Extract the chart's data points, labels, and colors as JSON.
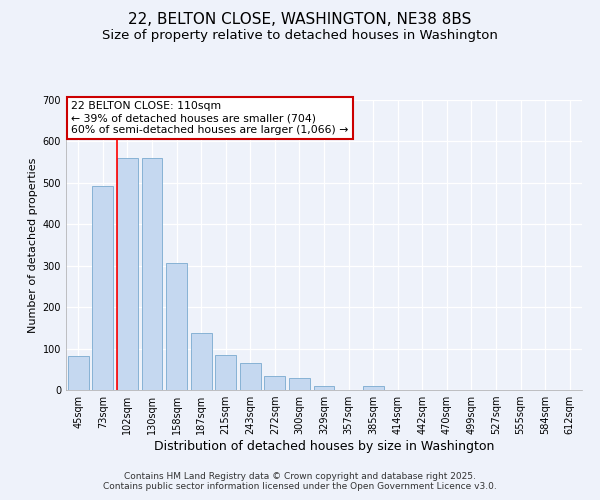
{
  "title": "22, BELTON CLOSE, WASHINGTON, NE38 8BS",
  "subtitle": "Size of property relative to detached houses in Washington",
  "xlabel": "Distribution of detached houses by size in Washington",
  "ylabel": "Number of detached properties",
  "categories": [
    "45sqm",
    "73sqm",
    "102sqm",
    "130sqm",
    "158sqm",
    "187sqm",
    "215sqm",
    "243sqm",
    "272sqm",
    "300sqm",
    "329sqm",
    "357sqm",
    "385sqm",
    "414sqm",
    "442sqm",
    "470sqm",
    "499sqm",
    "527sqm",
    "555sqm",
    "584sqm",
    "612sqm"
  ],
  "values": [
    83,
    493,
    560,
    560,
    307,
    137,
    85,
    65,
    35,
    30,
    10,
    0,
    10,
    0,
    0,
    0,
    0,
    0,
    0,
    0,
    0
  ],
  "bar_color": "#c5d8f0",
  "bar_edge_color": "#7aaad0",
  "red_line_index": 2,
  "annotation_title": "22 BELTON CLOSE: 110sqm",
  "annotation_line1": "← 39% of detached houses are smaller (704)",
  "annotation_line2": "60% of semi-detached houses are larger (1,066) →",
  "annotation_box_color": "#ffffff",
  "annotation_box_edge": "#cc0000",
  "ylim": [
    0,
    700
  ],
  "yticks": [
    0,
    100,
    200,
    300,
    400,
    500,
    600,
    700
  ],
  "background_color": "#eef2fa",
  "plot_bg_color": "#eef2fa",
  "footer1": "Contains HM Land Registry data © Crown copyright and database right 2025.",
  "footer2": "Contains public sector information licensed under the Open Government Licence v3.0.",
  "title_fontsize": 11,
  "subtitle_fontsize": 9.5,
  "ylabel_fontsize": 8,
  "xlabel_fontsize": 9,
  "tick_fontsize": 7,
  "footer_fontsize": 6.5
}
